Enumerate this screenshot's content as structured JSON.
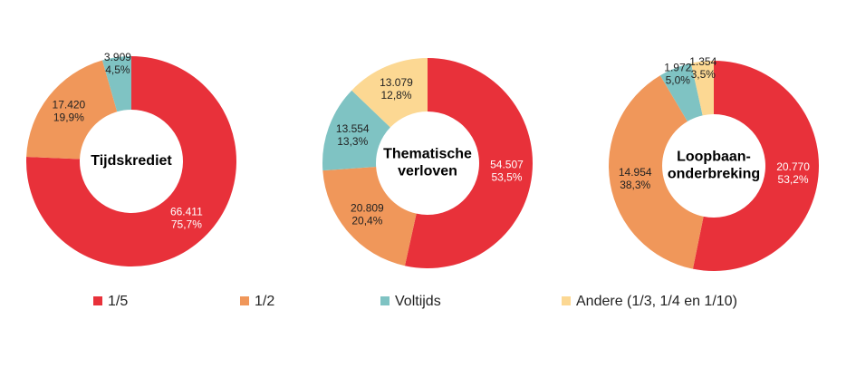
{
  "chart_data": [
    {
      "type": "donut",
      "title": [
        "Tijdskrediet"
      ],
      "categories": [
        "1/5",
        "1/2",
        "Voltijds"
      ],
      "colors": [
        "#e8313a",
        "#f0975a",
        "#7fc3c3"
      ],
      "values": [
        66411,
        17420,
        3909
      ],
      "value_labels": [
        "66.411",
        "17.420",
        "3.909"
      ],
      "percents": [
        75.7,
        19.9,
        4.5
      ],
      "percent_labels": [
        "75,7%",
        "19,9%",
        "4,5%"
      ]
    },
    {
      "type": "donut",
      "title": [
        "Thematische",
        "verloven"
      ],
      "categories": [
        "1/5",
        "1/2",
        "Voltijds",
        "Andere (1/3, 1/4 en 1/10)"
      ],
      "colors": [
        "#e8313a",
        "#f0975a",
        "#7fc3c3",
        "#fcd893"
      ],
      "values": [
        54507,
        20809,
        13554,
        13079
      ],
      "value_labels": [
        "54.507",
        "20.809",
        "13.554",
        "13.079"
      ],
      "percents": [
        53.5,
        20.4,
        13.3,
        12.8
      ],
      "percent_labels": [
        "53,5%",
        "20,4%",
        "13,3%",
        "12,8%"
      ]
    },
    {
      "type": "donut",
      "title": [
        "Loopbaan-",
        "onderbreking"
      ],
      "categories": [
        "1/5",
        "1/2",
        "Voltijds",
        "Andere (1/3, 1/4 en 1/10)"
      ],
      "colors": [
        "#e8313a",
        "#f0975a",
        "#7fc3c3",
        "#fcd893"
      ],
      "values": [
        20770,
        14954,
        1972,
        1354
      ],
      "value_labels": [
        "20.770",
        "14.954",
        "1.972",
        "1.354"
      ],
      "percents": [
        53.2,
        38.3,
        5.0,
        3.5
      ],
      "percent_labels": [
        "53,2%",
        "38,3%",
        "5,0%",
        "3,5%"
      ]
    }
  ]
}
